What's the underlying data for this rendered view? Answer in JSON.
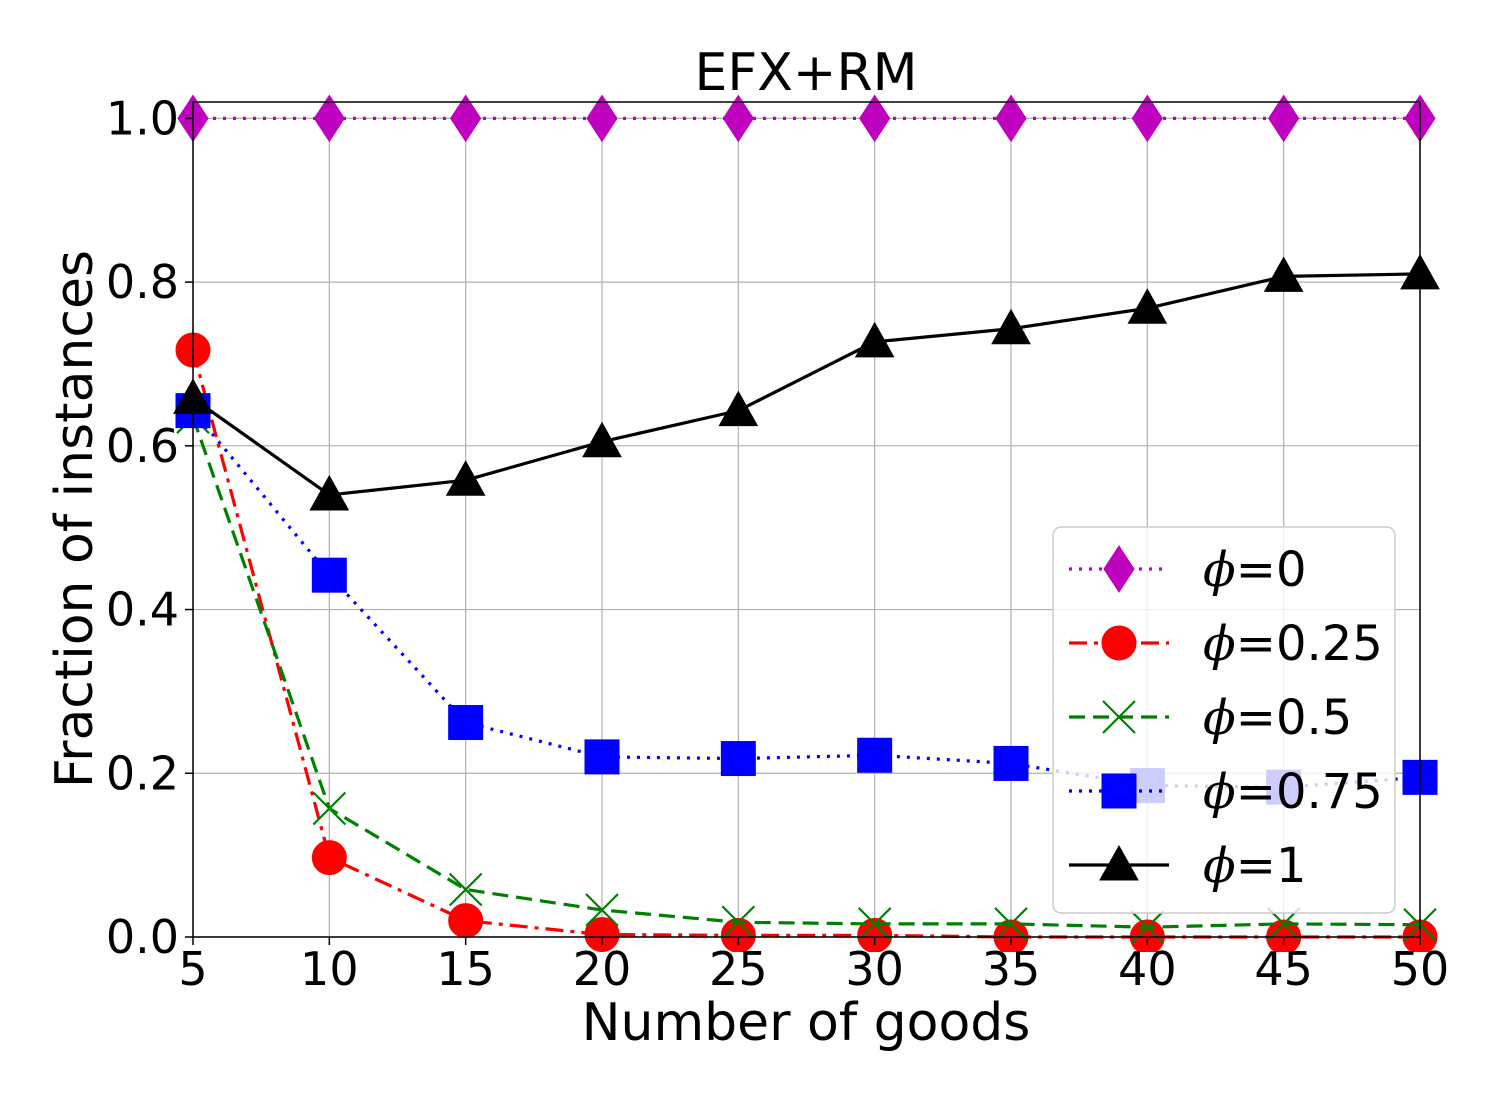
{
  "chart_data": {
    "type": "line",
    "title": "EFX+RM",
    "xlabel": "Number of goods",
    "ylabel": "Fraction of instances",
    "x": [
      5,
      10,
      15,
      20,
      25,
      30,
      35,
      40,
      45,
      50
    ],
    "xlim": [
      5,
      50
    ],
    "ylim": [
      0,
      1.02
    ],
    "xticks": [
      "5",
      "10",
      "15",
      "20",
      "25",
      "30",
      "35",
      "40",
      "45",
      "50"
    ],
    "yticks": [
      "0.0",
      "0.2",
      "0.4",
      "0.6",
      "0.8",
      "1.0"
    ],
    "grid": true,
    "legend_position": "center-right",
    "series": [
      {
        "name": "=0",
        "symbol": "ϕ",
        "color": "#bf00bf",
        "marker": "diamond",
        "dash": "dotted",
        "values": [
          1.0,
          1.0,
          1.0,
          1.0,
          1.0,
          1.0,
          1.0,
          1.0,
          1.0,
          1.0
        ]
      },
      {
        "name": "=0.25",
        "symbol": "ϕ",
        "color": "#ff0000",
        "marker": "circle",
        "dash": "dashdot",
        "values": [
          0.717,
          0.097,
          0.02,
          0.003,
          0.002,
          0.002,
          0.0,
          0.0,
          0.0,
          0.0
        ]
      },
      {
        "name": "=0.5",
        "symbol": "ϕ",
        "color": "#008000",
        "marker": "x",
        "dash": "dashed",
        "values": [
          0.635,
          0.157,
          0.058,
          0.033,
          0.018,
          0.016,
          0.016,
          0.012,
          0.016,
          0.015
        ]
      },
      {
        "name": "=0.75",
        "symbol": "ϕ",
        "color": "#0000ff",
        "marker": "square",
        "dash": "dotted",
        "values": [
          0.643,
          0.442,
          0.262,
          0.22,
          0.218,
          0.222,
          0.212,
          0.185,
          0.183,
          0.195
        ]
      },
      {
        "name": "=1",
        "symbol": "ϕ",
        "color": "#000000",
        "marker": "triangle",
        "dash": "solid",
        "values": [
          0.658,
          0.54,
          0.558,
          0.605,
          0.643,
          0.727,
          0.743,
          0.768,
          0.807,
          0.81
        ]
      }
    ]
  }
}
